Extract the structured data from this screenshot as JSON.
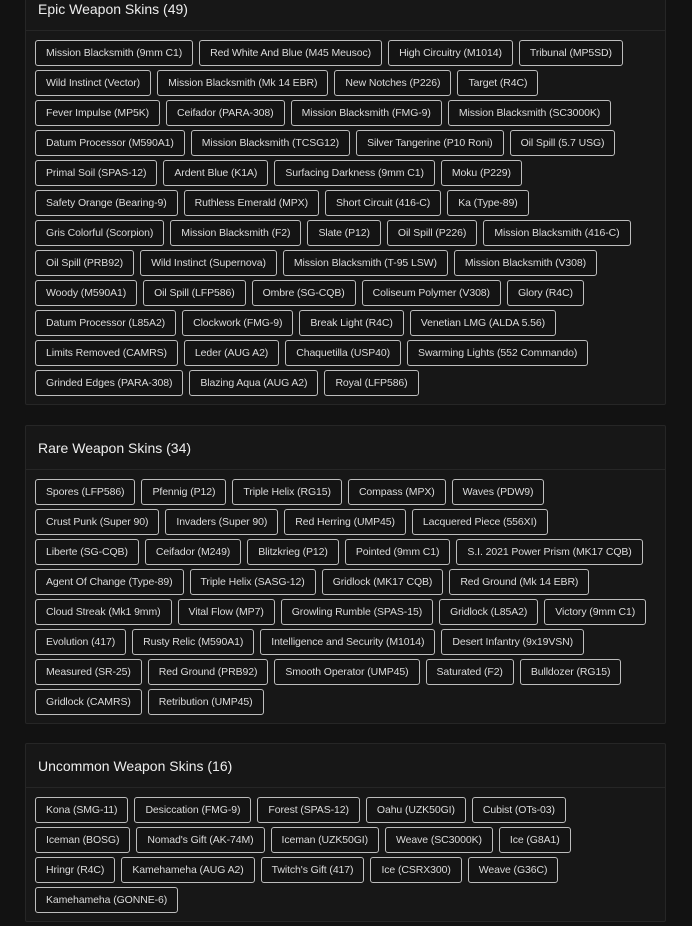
{
  "sections": [
    {
      "title": "Epic Weapon Skins (49)",
      "rows": [
        [
          "Mission Blacksmith (9mm C1)",
          "Red White And Blue (M45 Meusoc)",
          "High Circuitry (M1014)",
          "Tribunal (MP5SD)"
        ],
        [
          "Wild Instinct (Vector)",
          "Mission Blacksmith (Mk 14 EBR)",
          "New Notches (P226)",
          "Target (R4C)"
        ],
        [
          "Fever Impulse (MP5K)",
          "Ceifador (PARA-308)",
          "Mission Blacksmith (FMG-9)",
          "Mission Blacksmith (SC3000K)"
        ],
        [
          "Datum Processor (M590A1)",
          "Mission Blacksmith (TCSG12)",
          "Silver Tangerine (P10 Roni)",
          "Oil Spill (5.7 USG)"
        ],
        [
          "Primal Soil (SPAS-12)",
          "Ardent Blue (K1A)",
          "Surfacing Darkness (9mm C1)",
          "Moku (P229)"
        ],
        [
          "Safety Orange (Bearing-9)",
          "Ruthless Emerald (MPX)",
          "Short Circuit (416-C)",
          "Ka (Type-89)"
        ],
        [
          "Gris Colorful (Scorpion)",
          "Mission Blacksmith (F2)",
          "Slate (P12)",
          "Oil Spill (P226)",
          "Mission Blacksmith (416-C)"
        ],
        [
          "Oil Spill (PRB92)",
          "Wild Instinct (Supernova)",
          "Mission Blacksmith (T-95 LSW)",
          "Mission Blacksmith (V308)"
        ],
        [
          "Woody (M590A1)",
          "Oil Spill (LFP586)",
          "Ombre (SG-CQB)",
          "Coliseum Polymer (V308)",
          "Glory (R4C)"
        ],
        [
          "Datum Processor (L85A2)",
          "Clockwork (FMG-9)",
          "Break Light (R4C)",
          "Venetian LMG (ALDA 5.56)"
        ],
        [
          "Limits Removed (CAMRS)",
          "Leder (AUG A2)",
          "Chaquetilla (USP40)",
          "Swarming Lights (552 Commando)"
        ],
        [
          "Grinded Edges (PARA-308)",
          "Blazing Aqua (AUG A2)",
          "Royal (LFP586)"
        ]
      ]
    },
    {
      "title": "Rare Weapon Skins (34)",
      "rows": [
        [
          "Spores (LFP586)",
          "Pfennig (P12)",
          "Triple Helix (RG15)",
          "Compass (MPX)",
          "Waves (PDW9)"
        ],
        [
          "Crust Punk (Super 90)",
          "Invaders (Super 90)",
          "Red Herring (UMP45)",
          "Lacquered Piece (556XI)"
        ],
        [
          "Liberte (SG-CQB)",
          "Ceifador (M249)",
          "Blitzkrieg (P12)",
          "Pointed (9mm C1)",
          "S.I. 2021 Power Prism (MK17 CQB)"
        ],
        [
          "Agent Of Change (Type-89)",
          "Triple Helix (SASG-12)",
          "Gridlock (MK17 CQB)",
          "Red Ground (Mk 14 EBR)"
        ],
        [
          "Cloud Streak (Mk1 9mm)",
          "Vital Flow (MP7)",
          "Growling Rumble (SPAS-15)",
          "Gridlock (L85A2)",
          "Victory (9mm C1)"
        ],
        [
          "Evolution (417)",
          "Rusty Relic (M590A1)",
          "Intelligence and Security (M1014)",
          "Desert Infantry (9x19VSN)"
        ],
        [
          "Measured (SR-25)",
          "Red Ground (PRB92)",
          "Smooth Operator (UMP45)",
          "Saturated (F2)",
          "Bulldozer (RG15)"
        ],
        [
          "Gridlock (CAMRS)",
          "Retribution (UMP45)"
        ]
      ]
    },
    {
      "title": "Uncommon Weapon Skins (16)",
      "rows": [
        [
          "Kona (SMG-11)",
          "Desiccation (FMG-9)",
          "Forest (SPAS-12)",
          "Oahu (UZK50GI)",
          "Cubist (OTs-03)"
        ],
        [
          "Iceman (BOSG)",
          "Nomad's Gift (AK-74M)",
          "Iceman (UZK50GI)",
          "Weave (SC3000K)",
          "Ice (G8A1)"
        ],
        [
          "Hringr (R4C)",
          "Kamehameha (AUG A2)",
          "Twitch's Gift (417)",
          "Ice (CSRX300)",
          "Weave (G36C)"
        ],
        [
          "Kamehameha (GONNE-6)"
        ]
      ]
    }
  ]
}
